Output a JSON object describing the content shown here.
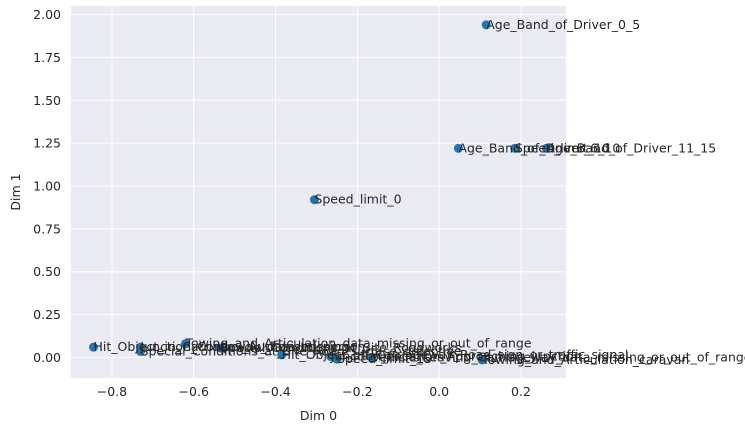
{
  "chart_data": {
    "type": "scatter",
    "xlabel": "Dim 0",
    "ylabel": "Dim 1",
    "xlim": [
      -0.9,
      0.31
    ],
    "ylim": [
      -0.12,
      2.05
    ],
    "grid": true,
    "xticks": [
      -0.8,
      -0.6,
      -0.4,
      -0.2,
      0.0,
      0.2
    ],
    "xtick_labels": [
      "−0.8",
      "−0.6",
      "−0.4",
      "−0.2",
      "0.0",
      "0.2"
    ],
    "yticks": [
      0.0,
      0.25,
      0.5,
      0.75,
      1.0,
      1.25,
      1.5,
      1.75,
      2.0
    ],
    "ytick_labels": [
      "0.00",
      "0.25",
      "0.50",
      "0.75",
      "1.00",
      "1.25",
      "1.50",
      "1.75",
      "2.00"
    ],
    "marker_color": "#1f77b4",
    "points": [
      {
        "x": 0.115,
        "y": 1.94,
        "label": "Age_Band_of_Driver_0_5"
      },
      {
        "x": 0.047,
        "y": 1.22,
        "label": "Age_Band_of_Driver_6_10"
      },
      {
        "x": 0.185,
        "y": 1.22,
        "label": "Speed_limit_10"
      },
      {
        "x": 0.262,
        "y": 1.22,
        "label": "Age_Band_of_Driver_11_15"
      },
      {
        "x": -0.305,
        "y": 0.92,
        "label": "Speed_limit_0"
      },
      {
        "x": -0.845,
        "y": 0.06,
        "label": "Hit_Object_in_Carriageway_data_missing"
      },
      {
        "x": -0.73,
        "y": 0.06,
        "label": "Junction_Control_Authorised_person"
      },
      {
        "x": -0.73,
        "y": 0.035,
        "label": "Special_Conditions_at_Site_Road_surface_defective"
      },
      {
        "x": -0.62,
        "y": 0.08,
        "label": "Towing_and_Articulation_data_missing_or_out_of_range"
      },
      {
        "x": -0.535,
        "y": 0.055,
        "label": "Special_Conditions_at_Site_Roadworks"
      },
      {
        "x": -0.385,
        "y": 0.015,
        "label": "Hit_Object_off_Carriageway_Road_sign_or_traffic_signal"
      },
      {
        "x": -0.265,
        "y": 0.005,
        "label": "Junction_Location_Approaching_junction"
      },
      {
        "x": -0.25,
        "y": -0.01,
        "label": "Speed_limit_15"
      },
      {
        "x": -0.165,
        "y": 0.0,
        "label": "Vehicle_Leaving_Carriageway_data_missing_or_out_of_range"
      },
      {
        "x": 0.105,
        "y": -0.015,
        "label": "Towing_and_Articulation_caravan"
      }
    ]
  }
}
